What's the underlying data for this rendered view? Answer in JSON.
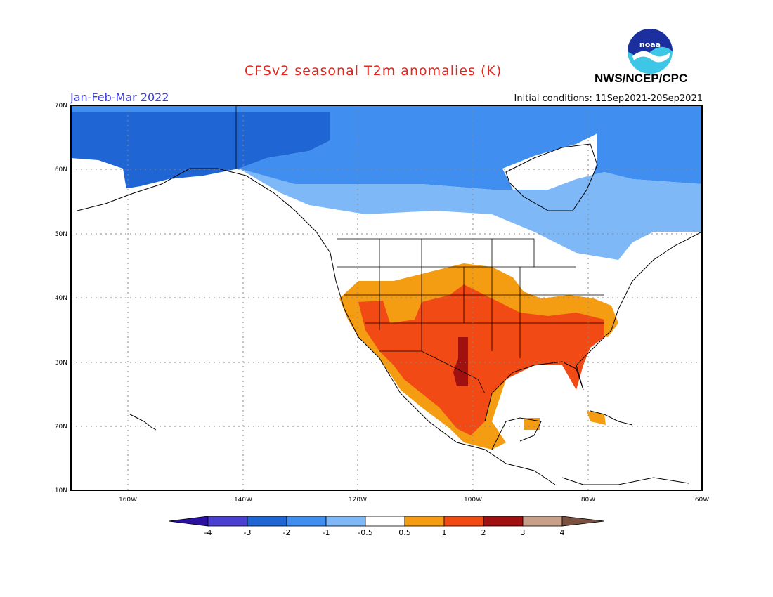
{
  "header": {
    "title": "CFSv2 seasonal T2m anomalies (K)",
    "period": "Jan-Feb-Mar 2022",
    "initial_conditions": "Initial conditions: 11Sep2021-20Sep2021",
    "agency": "NWS/NCEP/CPC",
    "logo_text": "noaa"
  },
  "map": {
    "projection": "lat-lon",
    "lon_range": [
      -170,
      -60
    ],
    "lat_range": [
      10,
      70
    ],
    "lon_ticks": [
      "160W",
      "140W",
      "120W",
      "100W",
      "80W",
      "60W"
    ],
    "lat_ticks": [
      "70N",
      "60N",
      "50N",
      "40N",
      "30N",
      "20N",
      "10N"
    ],
    "grid": "dotted",
    "regions": [
      {
        "name": "alaska-yukon",
        "anomaly_bin": "-3 to -2"
      },
      {
        "name": "northern-canada",
        "anomaly_bin": "-2 to -1"
      },
      {
        "name": "southern-canada",
        "anomaly_bin": "-1 to -0.5"
      },
      {
        "name": "central-plains-southwest",
        "anomaly_bin": "0.5 to 1"
      },
      {
        "name": "southern-us-mexico",
        "anomaly_bin": "1 to 2"
      },
      {
        "name": "west-texas",
        "anomaly_bin": "2 to 3"
      }
    ]
  },
  "colorbar": {
    "labels": [
      "-4",
      "-3",
      "-2",
      "-1",
      "-0.5",
      "0.5",
      "1",
      "2",
      "3",
      "4"
    ],
    "colors": [
      "#2a0fa1",
      "#4a3fd0",
      "#1f66d4",
      "#3f8ef0",
      "#7fb8f7",
      "#ffffff",
      "#f59d12",
      "#f24a14",
      "#a01010",
      "#c8a08a",
      "#7a5040"
    ]
  }
}
